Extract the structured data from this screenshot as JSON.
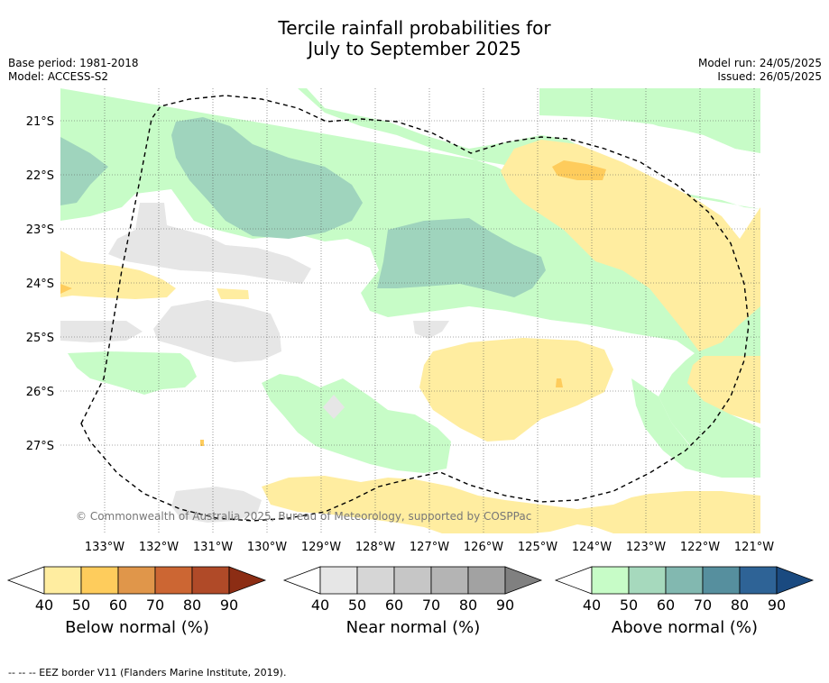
{
  "title_line1": "Tercile rainfall probabilities for",
  "title_line2": "July to September 2025",
  "meta_left": {
    "base_period": "Base period: 1981-2018",
    "model": "Model: ACCESS-S2"
  },
  "meta_right": {
    "model_run": "Model run: 24/05/2025",
    "issued": "Issued: 26/05/2025"
  },
  "copyright": "© Commonwealth of Australia 2025, Bureau of Meteorology, supported by COSPPac",
  "lat_labels": [
    "21°S",
    "22°S",
    "23°S",
    "24°S",
    "25°S",
    "26°S",
    "27°S"
  ],
  "lon_labels": [
    "133°W",
    "132°W",
    "131°W",
    "130°W",
    "129°W",
    "128°W",
    "127°W",
    "126°W",
    "125°W",
    "124°W",
    "123°W",
    "122°W",
    "121°W"
  ],
  "colorbars": [
    {
      "label": "Below normal (%)",
      "ticks": [
        "40",
        "50",
        "60",
        "70",
        "80",
        "90"
      ],
      "colors": [
        "#ffeda0",
        "#fecc5c",
        "#e0964a",
        "#cc6633",
        "#b04a28",
        "#8c2d14"
      ]
    },
    {
      "label": "Near normal (%)",
      "ticks": [
        "40",
        "50",
        "60",
        "70",
        "80",
        "90"
      ],
      "colors": [
        "#e6e6e6",
        "#d6d6d6",
        "#c6c6c6",
        "#b4b4b4",
        "#a2a2a2",
        "#808080"
      ]
    },
    {
      "label": "Above normal (%)",
      "ticks": [
        "40",
        "50",
        "60",
        "70",
        "80",
        "90"
      ],
      "colors": [
        "#c7fcc7",
        "#a6d9bd",
        "#82b8b0",
        "#568f9e",
        "#2e6396",
        "#1a4a80"
      ]
    }
  ],
  "footer": "-- -- -- EEZ border V11 (Flanders Marine Institute, 2019)."
}
